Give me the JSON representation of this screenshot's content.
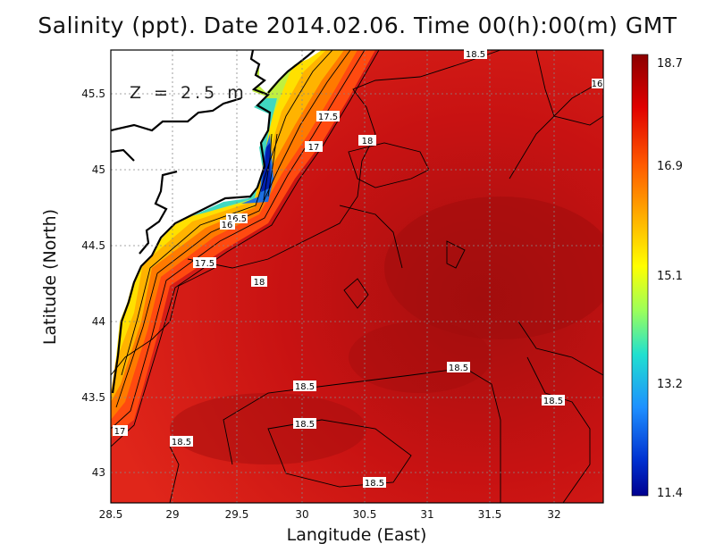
{
  "title": "Salinity (ppt). Date 2014.02.06. Time 00(h):00(m) GMT",
  "depth_label": "Z = 2.5 m",
  "axes": {
    "xlabel": "Langitude (East)",
    "ylabel": "Latitude (North)",
    "x_ticks": [
      "28.5",
      "29",
      "29.5",
      "30",
      "30.5",
      "31",
      "31.5",
      "32"
    ],
    "y_ticks": [
      "43",
      "43.5",
      "44",
      "44.5",
      "45",
      "45.5"
    ],
    "xlim": [
      28.5,
      32.4
    ],
    "ylim": [
      42.8,
      45.8
    ],
    "grid": true
  },
  "colorbar": {
    "labels": [
      "18.7",
      "16.9",
      "15.1",
      "13.2",
      "11.4"
    ],
    "range": [
      11.4,
      18.7
    ]
  },
  "contour_labels": [
    "18.5",
    "16",
    "17.5",
    "18",
    "17",
    "16.5",
    "16",
    "17.5",
    "18",
    "18.5",
    "18.5",
    "18.5",
    "18.5",
    "18.5",
    "17",
    "18.5"
  ]
}
